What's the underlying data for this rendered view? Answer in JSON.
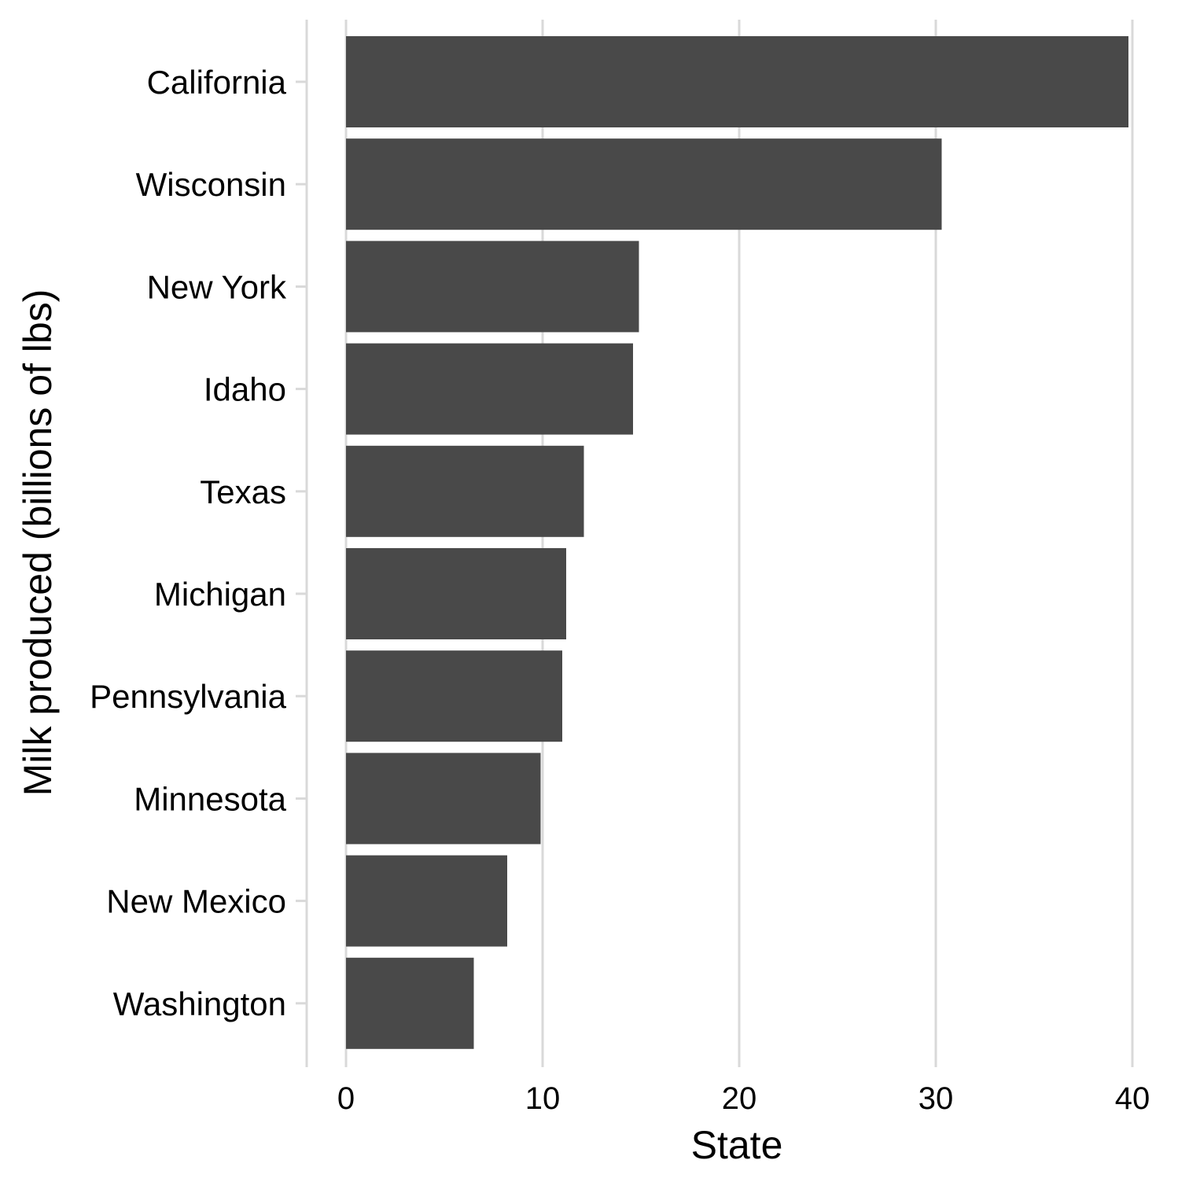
{
  "chart_data": {
    "type": "bar",
    "orientation": "horizontal",
    "categories": [
      "California",
      "Wisconsin",
      "New York",
      "Idaho",
      "Texas",
      "Michigan",
      "Pennsylvania",
      "Minnesota",
      "New Mexico",
      "Washington"
    ],
    "values": [
      39.8,
      30.3,
      14.9,
      14.6,
      12.1,
      11.2,
      11.0,
      9.9,
      8.2,
      6.5
    ],
    "xlabel": "State",
    "ylabel": "Milk produced (billions of lbs)",
    "x_ticks": [
      "0",
      "10",
      "20",
      "30",
      "40"
    ],
    "xlim": [
      0,
      40
    ],
    "grid": "vertical major gridlines",
    "colors": {
      "bar": "#494949",
      "grid": "#d9d9d9",
      "background": "#ffffff",
      "text": "#000000"
    }
  }
}
